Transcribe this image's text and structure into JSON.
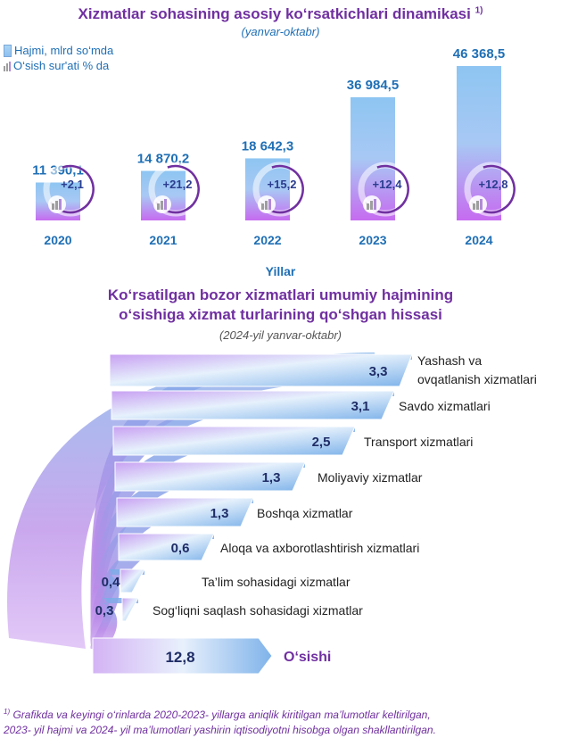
{
  "header": {
    "title": "Xizmatlar sohasining asosiy ko‘rsatkichlari dinamikasi",
    "title_sup": "1)",
    "subtitle": "(yanvar-oktabr)",
    "legend_volume": "Hajmi, mlrd so‘mda",
    "legend_growth": "O‘sish sur'ati % da",
    "xlabel": "Yillar"
  },
  "section2": {
    "title_line1": "Ko‘rsatilgan bozor xizmatlari umumiy hajmining",
    "title_line2": "o‘sishiga xizmat turlarining qo‘shgan hissasi",
    "subtitle": "(2024-yil yanvar-oktabr)"
  },
  "footnote": {
    "sup": "1)",
    "line1": "Grafikda va keyingi o‘rinlarda 2020-2023- yillarga aniqlik kiritilgan ma’lumotlar keltirilgan,",
    "line2": "2023- yil hajmi va 2024- yil ma’lumotlari yashirin iqtisodiyotni hisobga olgan shakllantirilgan."
  },
  "colors": {
    "title": "#7030a0",
    "label": "#1f6fb5",
    "bar_top": "#8ec5f2",
    "bar_bottom": "#c66bf0",
    "arc": "#7030a0"
  },
  "chart_data": [
    {
      "type": "bar",
      "categories": [
        "2020",
        "2021",
        "2022",
        "2023",
        "2024"
      ],
      "series": [
        {
          "name": "Hajmi, mlrd so‘mda",
          "values": [
            11390.1,
            14870.2,
            18642.3,
            36984.5,
            46368.5
          ]
        },
        {
          "name": "O‘sish sur'ati % da",
          "values": [
            2.1,
            21.2,
            15.2,
            12.4,
            12.8
          ]
        }
      ],
      "value_labels": [
        "11 390,1",
        "14 870,2",
        "18 642,3",
        "36 984,5",
        "46 368,5"
      ],
      "growth_labels": [
        "+2,1",
        "+21,2",
        "+15,2",
        "+12,4",
        "+12,8"
      ],
      "xlabel": "Yillar"
    },
    {
      "type": "bar",
      "categories": [
        "Yashash va ovqatlanish xizmatlari",
        "Savdo xizmatlari",
        "Transport xizmatlari",
        "Moliyaviy xizmatlar",
        "Boshqa xizmatlar",
        "Aloqa va axborotlashtirish xizmatlari",
        "Ta’lim sohasidagi xizmatlar",
        "Sog‘liqni saqlash sohasidagi xizmatlar"
      ],
      "category_lines": [
        [
          "Yashash va",
          "ovqatlanish xizmatlari"
        ],
        [
          "Savdo xizmatlari"
        ],
        [
          "Transport xizmatlari"
        ],
        [
          "Moliyaviy xizmatlar"
        ],
        [
          "Boshqa xizmatlar"
        ],
        [
          "Aloqa va axborotlashtirish xizmatlari"
        ],
        [
          "Ta’lim sohasidagi xizmatlar"
        ],
        [
          "Sog‘liqni saqlash sohasidagi xizmatlar"
        ]
      ],
      "values": [
        3.3,
        3.1,
        2.5,
        1.3,
        1.3,
        0.6,
        0.4,
        0.3
      ],
      "value_labels": [
        "3,3",
        "3,1",
        "2,5",
        "1,3",
        "1,3",
        "0,6",
        "0,4",
        "0,3"
      ],
      "total": {
        "label": "O‘sishi",
        "value": 12.8,
        "value_label": "12,8"
      }
    }
  ]
}
